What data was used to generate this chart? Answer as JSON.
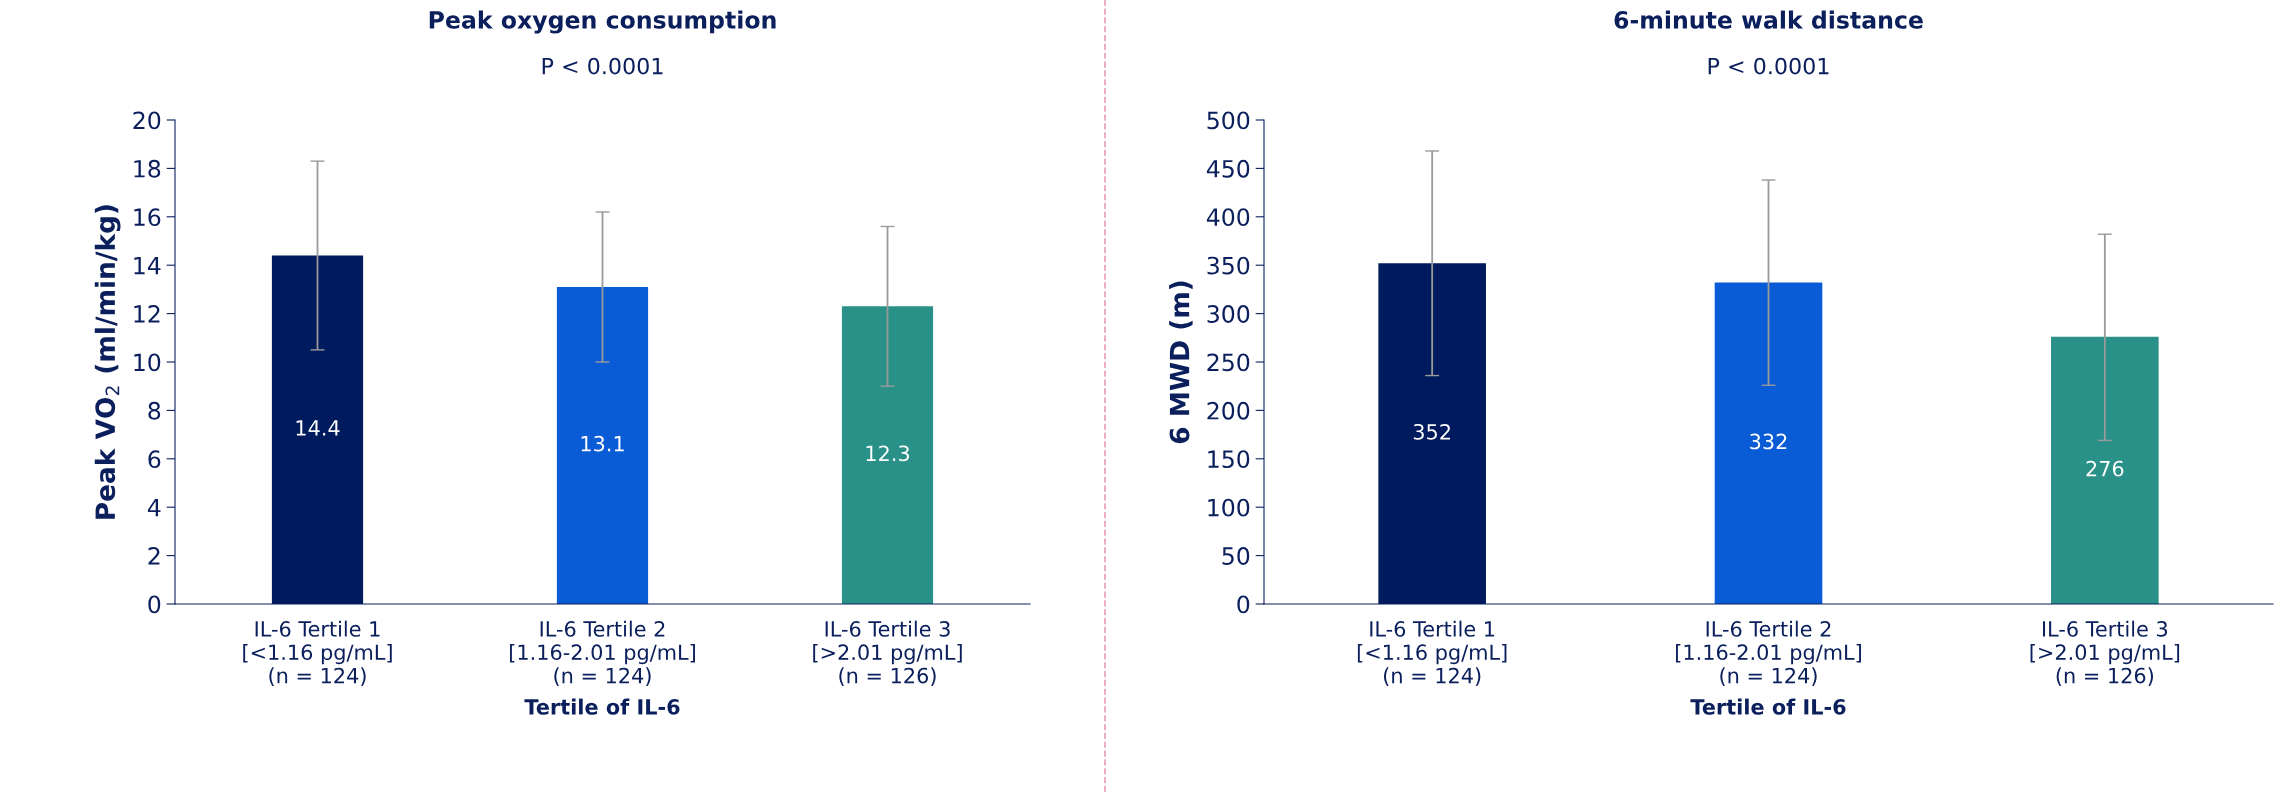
{
  "chart_data": [
    {
      "type": "bar",
      "title": "Peak oxygen consumption",
      "subtitle": "P < 0.0001",
      "xlabel": "Tertile of IL-6",
      "ylabel": "Peak VO$_{2}$ (ml/min/kg)",
      "categories": [
        "IL-6 Tertile 1\n[<1.16 pg/mL]\n(n = 124)",
        "IL-6 Tertile 2\n[1.16-2.01 pg/mL]\n(n = 124)",
        "IL-6 Tertile 3\n[>2.01 pg/mL]\n(n = 126)"
      ],
      "values": [
        14.4,
        13.1,
        12.3
      ],
      "colors": [
        "#001a5e",
        "#0a5bd6",
        "#2a9188"
      ],
      "errors": [
        [
          10.5,
          18.3
        ],
        [
          10.0,
          16.2
        ],
        [
          9.0,
          15.6
        ]
      ],
      "ylim": [
        0,
        20
      ],
      "yticks": [
        0,
        2,
        4,
        6,
        8,
        10,
        12,
        14,
        16,
        18,
        20
      ],
      "grid": false,
      "data_labels": true
    },
    {
      "type": "bar",
      "title": "6-minute walk distance",
      "subtitle": "P < 0.0001",
      "xlabel": "Tertile of IL-6",
      "ylabel": "6 MWD (m)",
      "categories": [
        "IL-6 Tertile 1\n[<1.16 pg/mL]\n(n = 124)",
        "IL-6 Tertile 2\n[1.16-2.01 pg/mL]\n(n = 124)",
        "IL-6 Tertile 3\n[>2.01 pg/mL]\n(n = 126)"
      ],
      "values": [
        352,
        332,
        276
      ],
      "colors": [
        "#001a5e",
        "#0a5bd6",
        "#2a9188"
      ],
      "errors": [
        [
          236,
          468
        ],
        [
          226,
          438
        ],
        [
          169,
          382
        ]
      ],
      "ylim": [
        0,
        500
      ],
      "yticks": [
        0,
        50,
        100,
        150,
        200,
        250,
        300,
        350,
        400,
        450,
        500
      ],
      "grid": false,
      "data_labels": true
    }
  ]
}
